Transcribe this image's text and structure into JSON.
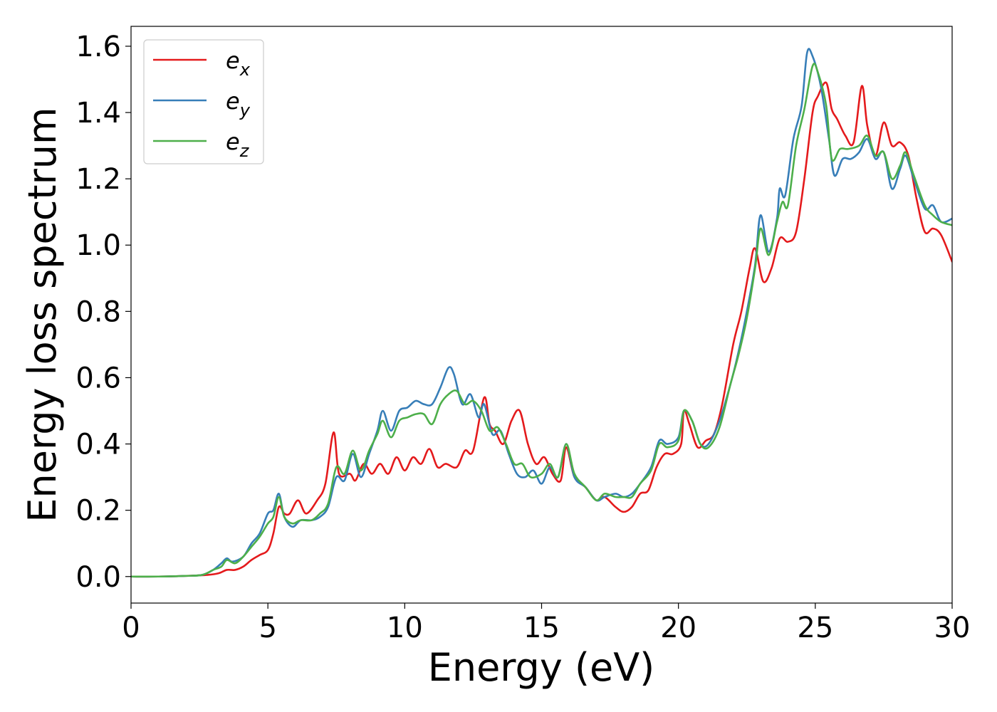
{
  "chart_data": {
    "type": "line",
    "title": "",
    "xlabel": "Energy (eV)",
    "ylabel": "Energy loss spectrum",
    "xlim": [
      0,
      30
    ],
    "ylim": [
      -0.08,
      1.66
    ],
    "x_ticks": [
      0,
      5,
      10,
      15,
      20,
      25,
      30
    ],
    "x_tick_labels": [
      "0",
      "5",
      "10",
      "15",
      "20",
      "25",
      "30"
    ],
    "y_ticks": [
      0.0,
      0.2,
      0.4,
      0.6,
      0.8,
      1.0,
      1.2,
      1.4,
      1.6
    ],
    "y_tick_labels": [
      "0.0",
      "0.2",
      "0.4",
      "0.6",
      "0.8",
      "1.0",
      "1.2",
      "1.4",
      "1.6"
    ],
    "grid": false,
    "legend_position": "top-left",
    "series": [
      {
        "name": "e",
        "subscript": "x",
        "color": "#e41a1c",
        "points": [
          [
            0,
            0.0
          ],
          [
            1,
            0.0
          ],
          [
            2,
            0.002
          ],
          [
            2.8,
            0.005
          ],
          [
            3.2,
            0.01
          ],
          [
            3.5,
            0.02
          ],
          [
            3.8,
            0.02
          ],
          [
            4.1,
            0.03
          ],
          [
            4.4,
            0.05
          ],
          [
            4.7,
            0.065
          ],
          [
            5.0,
            0.08
          ],
          [
            5.2,
            0.13
          ],
          [
            5.4,
            0.21
          ],
          [
            5.6,
            0.19
          ],
          [
            5.8,
            0.19
          ],
          [
            6.1,
            0.23
          ],
          [
            6.4,
            0.19
          ],
          [
            6.8,
            0.23
          ],
          [
            7.1,
            0.28
          ],
          [
            7.4,
            0.435
          ],
          [
            7.6,
            0.31
          ],
          [
            8.0,
            0.31
          ],
          [
            8.2,
            0.29
          ],
          [
            8.5,
            0.34
          ],
          [
            8.8,
            0.31
          ],
          [
            9.1,
            0.34
          ],
          [
            9.4,
            0.31
          ],
          [
            9.7,
            0.36
          ],
          [
            10.0,
            0.32
          ],
          [
            10.3,
            0.36
          ],
          [
            10.6,
            0.34
          ],
          [
            10.9,
            0.385
          ],
          [
            11.2,
            0.33
          ],
          [
            11.5,
            0.34
          ],
          [
            11.9,
            0.33
          ],
          [
            12.2,
            0.38
          ],
          [
            12.5,
            0.38
          ],
          [
            12.9,
            0.54
          ],
          [
            13.1,
            0.46
          ],
          [
            13.3,
            0.44
          ],
          [
            13.6,
            0.4
          ],
          [
            13.9,
            0.47
          ],
          [
            14.2,
            0.5
          ],
          [
            14.5,
            0.4
          ],
          [
            14.8,
            0.34
          ],
          [
            15.1,
            0.36
          ],
          [
            15.4,
            0.31
          ],
          [
            15.7,
            0.29
          ],
          [
            15.9,
            0.39
          ],
          [
            16.2,
            0.3
          ],
          [
            16.6,
            0.27
          ],
          [
            17.0,
            0.23
          ],
          [
            17.3,
            0.24
          ],
          [
            17.7,
            0.21
          ],
          [
            18.0,
            0.195
          ],
          [
            18.3,
            0.21
          ],
          [
            18.6,
            0.25
          ],
          [
            18.9,
            0.26
          ],
          [
            19.2,
            0.33
          ],
          [
            19.5,
            0.37
          ],
          [
            19.8,
            0.37
          ],
          [
            20.1,
            0.4
          ],
          [
            20.2,
            0.5
          ],
          [
            20.4,
            0.46
          ],
          [
            20.7,
            0.39
          ],
          [
            21.0,
            0.41
          ],
          [
            21.3,
            0.43
          ],
          [
            21.6,
            0.52
          ],
          [
            22.0,
            0.7
          ],
          [
            22.3,
            0.8
          ],
          [
            22.6,
            0.93
          ],
          [
            22.8,
            0.99
          ],
          [
            23.1,
            0.89
          ],
          [
            23.4,
            0.93
          ],
          [
            23.7,
            1.02
          ],
          [
            24.0,
            1.01
          ],
          [
            24.3,
            1.04
          ],
          [
            24.6,
            1.2
          ],
          [
            24.9,
            1.4
          ],
          [
            25.1,
            1.45
          ],
          [
            25.4,
            1.49
          ],
          [
            25.6,
            1.41
          ],
          [
            25.8,
            1.38
          ],
          [
            26.1,
            1.33
          ],
          [
            26.4,
            1.31
          ],
          [
            26.7,
            1.48
          ],
          [
            26.9,
            1.36
          ],
          [
            27.2,
            1.27
          ],
          [
            27.5,
            1.37
          ],
          [
            27.8,
            1.3
          ],
          [
            28.1,
            1.31
          ],
          [
            28.4,
            1.27
          ],
          [
            28.7,
            1.14
          ],
          [
            29.0,
            1.04
          ],
          [
            29.3,
            1.05
          ],
          [
            29.6,
            1.03
          ],
          [
            30.0,
            0.95
          ]
        ]
      },
      {
        "name": "e",
        "subscript": "y",
        "color": "#377eb8",
        "points": [
          [
            0,
            0.0
          ],
          [
            1,
            0.0
          ],
          [
            2,
            0.002
          ],
          [
            2.6,
            0.005
          ],
          [
            3.0,
            0.02
          ],
          [
            3.3,
            0.04
          ],
          [
            3.5,
            0.055
          ],
          [
            3.7,
            0.045
          ],
          [
            4.1,
            0.06
          ],
          [
            4.4,
            0.1
          ],
          [
            4.7,
            0.13
          ],
          [
            5.0,
            0.19
          ],
          [
            5.2,
            0.2
          ],
          [
            5.4,
            0.25
          ],
          [
            5.6,
            0.18
          ],
          [
            5.9,
            0.15
          ],
          [
            6.2,
            0.17
          ],
          [
            6.6,
            0.17
          ],
          [
            6.9,
            0.18
          ],
          [
            7.2,
            0.21
          ],
          [
            7.5,
            0.3
          ],
          [
            7.8,
            0.29
          ],
          [
            8.1,
            0.37
          ],
          [
            8.4,
            0.3
          ],
          [
            8.7,
            0.37
          ],
          [
            9.0,
            0.44
          ],
          [
            9.2,
            0.5
          ],
          [
            9.5,
            0.44
          ],
          [
            9.8,
            0.5
          ],
          [
            10.1,
            0.51
          ],
          [
            10.4,
            0.53
          ],
          [
            10.7,
            0.52
          ],
          [
            11.0,
            0.52
          ],
          [
            11.3,
            0.57
          ],
          [
            11.6,
            0.63
          ],
          [
            11.8,
            0.61
          ],
          [
            12.1,
            0.52
          ],
          [
            12.4,
            0.55
          ],
          [
            12.7,
            0.48
          ],
          [
            12.9,
            0.52
          ],
          [
            13.2,
            0.43
          ],
          [
            13.5,
            0.44
          ],
          [
            13.8,
            0.37
          ],
          [
            14.1,
            0.31
          ],
          [
            14.4,
            0.3
          ],
          [
            14.7,
            0.32
          ],
          [
            15.0,
            0.28
          ],
          [
            15.3,
            0.33
          ],
          [
            15.6,
            0.3
          ],
          [
            15.9,
            0.4
          ],
          [
            16.2,
            0.3
          ],
          [
            16.6,
            0.27
          ],
          [
            17.0,
            0.23
          ],
          [
            17.3,
            0.24
          ],
          [
            17.7,
            0.25
          ],
          [
            18.0,
            0.24
          ],
          [
            18.3,
            0.25
          ],
          [
            18.6,
            0.28
          ],
          [
            19.0,
            0.33
          ],
          [
            19.3,
            0.41
          ],
          [
            19.6,
            0.4
          ],
          [
            20.0,
            0.42
          ],
          [
            20.2,
            0.5
          ],
          [
            20.5,
            0.47
          ],
          [
            20.8,
            0.4
          ],
          [
            21.1,
            0.4
          ],
          [
            21.5,
            0.47
          ],
          [
            21.9,
            0.58
          ],
          [
            22.2,
            0.68
          ],
          [
            22.5,
            0.8
          ],
          [
            22.8,
            0.94
          ],
          [
            23.0,
            1.09
          ],
          [
            23.3,
            0.98
          ],
          [
            23.6,
            1.08
          ],
          [
            23.7,
            1.17
          ],
          [
            23.9,
            1.15
          ],
          [
            24.2,
            1.32
          ],
          [
            24.5,
            1.42
          ],
          [
            24.7,
            1.58
          ],
          [
            24.9,
            1.57
          ],
          [
            25.2,
            1.48
          ],
          [
            25.5,
            1.32
          ],
          [
            25.7,
            1.21
          ],
          [
            26.0,
            1.26
          ],
          [
            26.3,
            1.26
          ],
          [
            26.6,
            1.28
          ],
          [
            26.9,
            1.32
          ],
          [
            27.2,
            1.26
          ],
          [
            27.5,
            1.28
          ],
          [
            27.8,
            1.17
          ],
          [
            28.1,
            1.23
          ],
          [
            28.3,
            1.27
          ],
          [
            28.6,
            1.2
          ],
          [
            29.0,
            1.11
          ],
          [
            29.3,
            1.12
          ],
          [
            29.6,
            1.07
          ],
          [
            30.0,
            1.08
          ]
        ]
      },
      {
        "name": "e",
        "subscript": "z",
        "color": "#4daf4a",
        "points": [
          [
            0,
            0.0
          ],
          [
            1,
            0.0
          ],
          [
            2,
            0.002
          ],
          [
            2.6,
            0.005
          ],
          [
            3.0,
            0.02
          ],
          [
            3.3,
            0.03
          ],
          [
            3.5,
            0.05
          ],
          [
            3.8,
            0.04
          ],
          [
            4.1,
            0.06
          ],
          [
            4.4,
            0.09
          ],
          [
            4.7,
            0.12
          ],
          [
            5.0,
            0.16
          ],
          [
            5.2,
            0.18
          ],
          [
            5.4,
            0.24
          ],
          [
            5.6,
            0.18
          ],
          [
            5.9,
            0.16
          ],
          [
            6.2,
            0.17
          ],
          [
            6.6,
            0.17
          ],
          [
            6.9,
            0.19
          ],
          [
            7.2,
            0.22
          ],
          [
            7.5,
            0.33
          ],
          [
            7.8,
            0.31
          ],
          [
            8.1,
            0.38
          ],
          [
            8.4,
            0.32
          ],
          [
            8.7,
            0.38
          ],
          [
            9.0,
            0.43
          ],
          [
            9.2,
            0.47
          ],
          [
            9.5,
            0.42
          ],
          [
            9.8,
            0.47
          ],
          [
            10.1,
            0.48
          ],
          [
            10.4,
            0.49
          ],
          [
            10.7,
            0.49
          ],
          [
            11.0,
            0.46
          ],
          [
            11.3,
            0.52
          ],
          [
            11.6,
            0.55
          ],
          [
            11.9,
            0.56
          ],
          [
            12.2,
            0.52
          ],
          [
            12.5,
            0.53
          ],
          [
            12.8,
            0.5
          ],
          [
            13.1,
            0.44
          ],
          [
            13.4,
            0.45
          ],
          [
            13.7,
            0.4
          ],
          [
            14.0,
            0.34
          ],
          [
            14.3,
            0.34
          ],
          [
            14.6,
            0.3
          ],
          [
            15.0,
            0.31
          ],
          [
            15.3,
            0.34
          ],
          [
            15.6,
            0.3
          ],
          [
            15.9,
            0.4
          ],
          [
            16.2,
            0.31
          ],
          [
            16.6,
            0.27
          ],
          [
            17.0,
            0.23
          ],
          [
            17.3,
            0.25
          ],
          [
            17.7,
            0.24
          ],
          [
            18.0,
            0.24
          ],
          [
            18.3,
            0.24
          ],
          [
            18.6,
            0.28
          ],
          [
            19.0,
            0.32
          ],
          [
            19.3,
            0.4
          ],
          [
            19.6,
            0.39
          ],
          [
            20.0,
            0.41
          ],
          [
            20.2,
            0.5
          ],
          [
            20.5,
            0.47
          ],
          [
            20.8,
            0.4
          ],
          [
            21.1,
            0.39
          ],
          [
            21.5,
            0.45
          ],
          [
            21.9,
            0.58
          ],
          [
            22.2,
            0.67
          ],
          [
            22.5,
            0.78
          ],
          [
            22.8,
            0.93
          ],
          [
            23.0,
            1.05
          ],
          [
            23.3,
            0.97
          ],
          [
            23.6,
            1.07
          ],
          [
            23.8,
            1.13
          ],
          [
            24.0,
            1.12
          ],
          [
            24.3,
            1.3
          ],
          [
            24.6,
            1.41
          ],
          [
            24.9,
            1.54
          ],
          [
            25.1,
            1.52
          ],
          [
            25.4,
            1.42
          ],
          [
            25.6,
            1.26
          ],
          [
            25.9,
            1.29
          ],
          [
            26.2,
            1.29
          ],
          [
            26.6,
            1.3
          ],
          [
            26.9,
            1.33
          ],
          [
            27.2,
            1.27
          ],
          [
            27.5,
            1.28
          ],
          [
            27.8,
            1.2
          ],
          [
            28.1,
            1.24
          ],
          [
            28.3,
            1.28
          ],
          [
            28.6,
            1.21
          ],
          [
            29.0,
            1.12
          ],
          [
            29.3,
            1.09
          ],
          [
            29.6,
            1.07
          ],
          [
            30.0,
            1.06
          ]
        ]
      }
    ]
  }
}
